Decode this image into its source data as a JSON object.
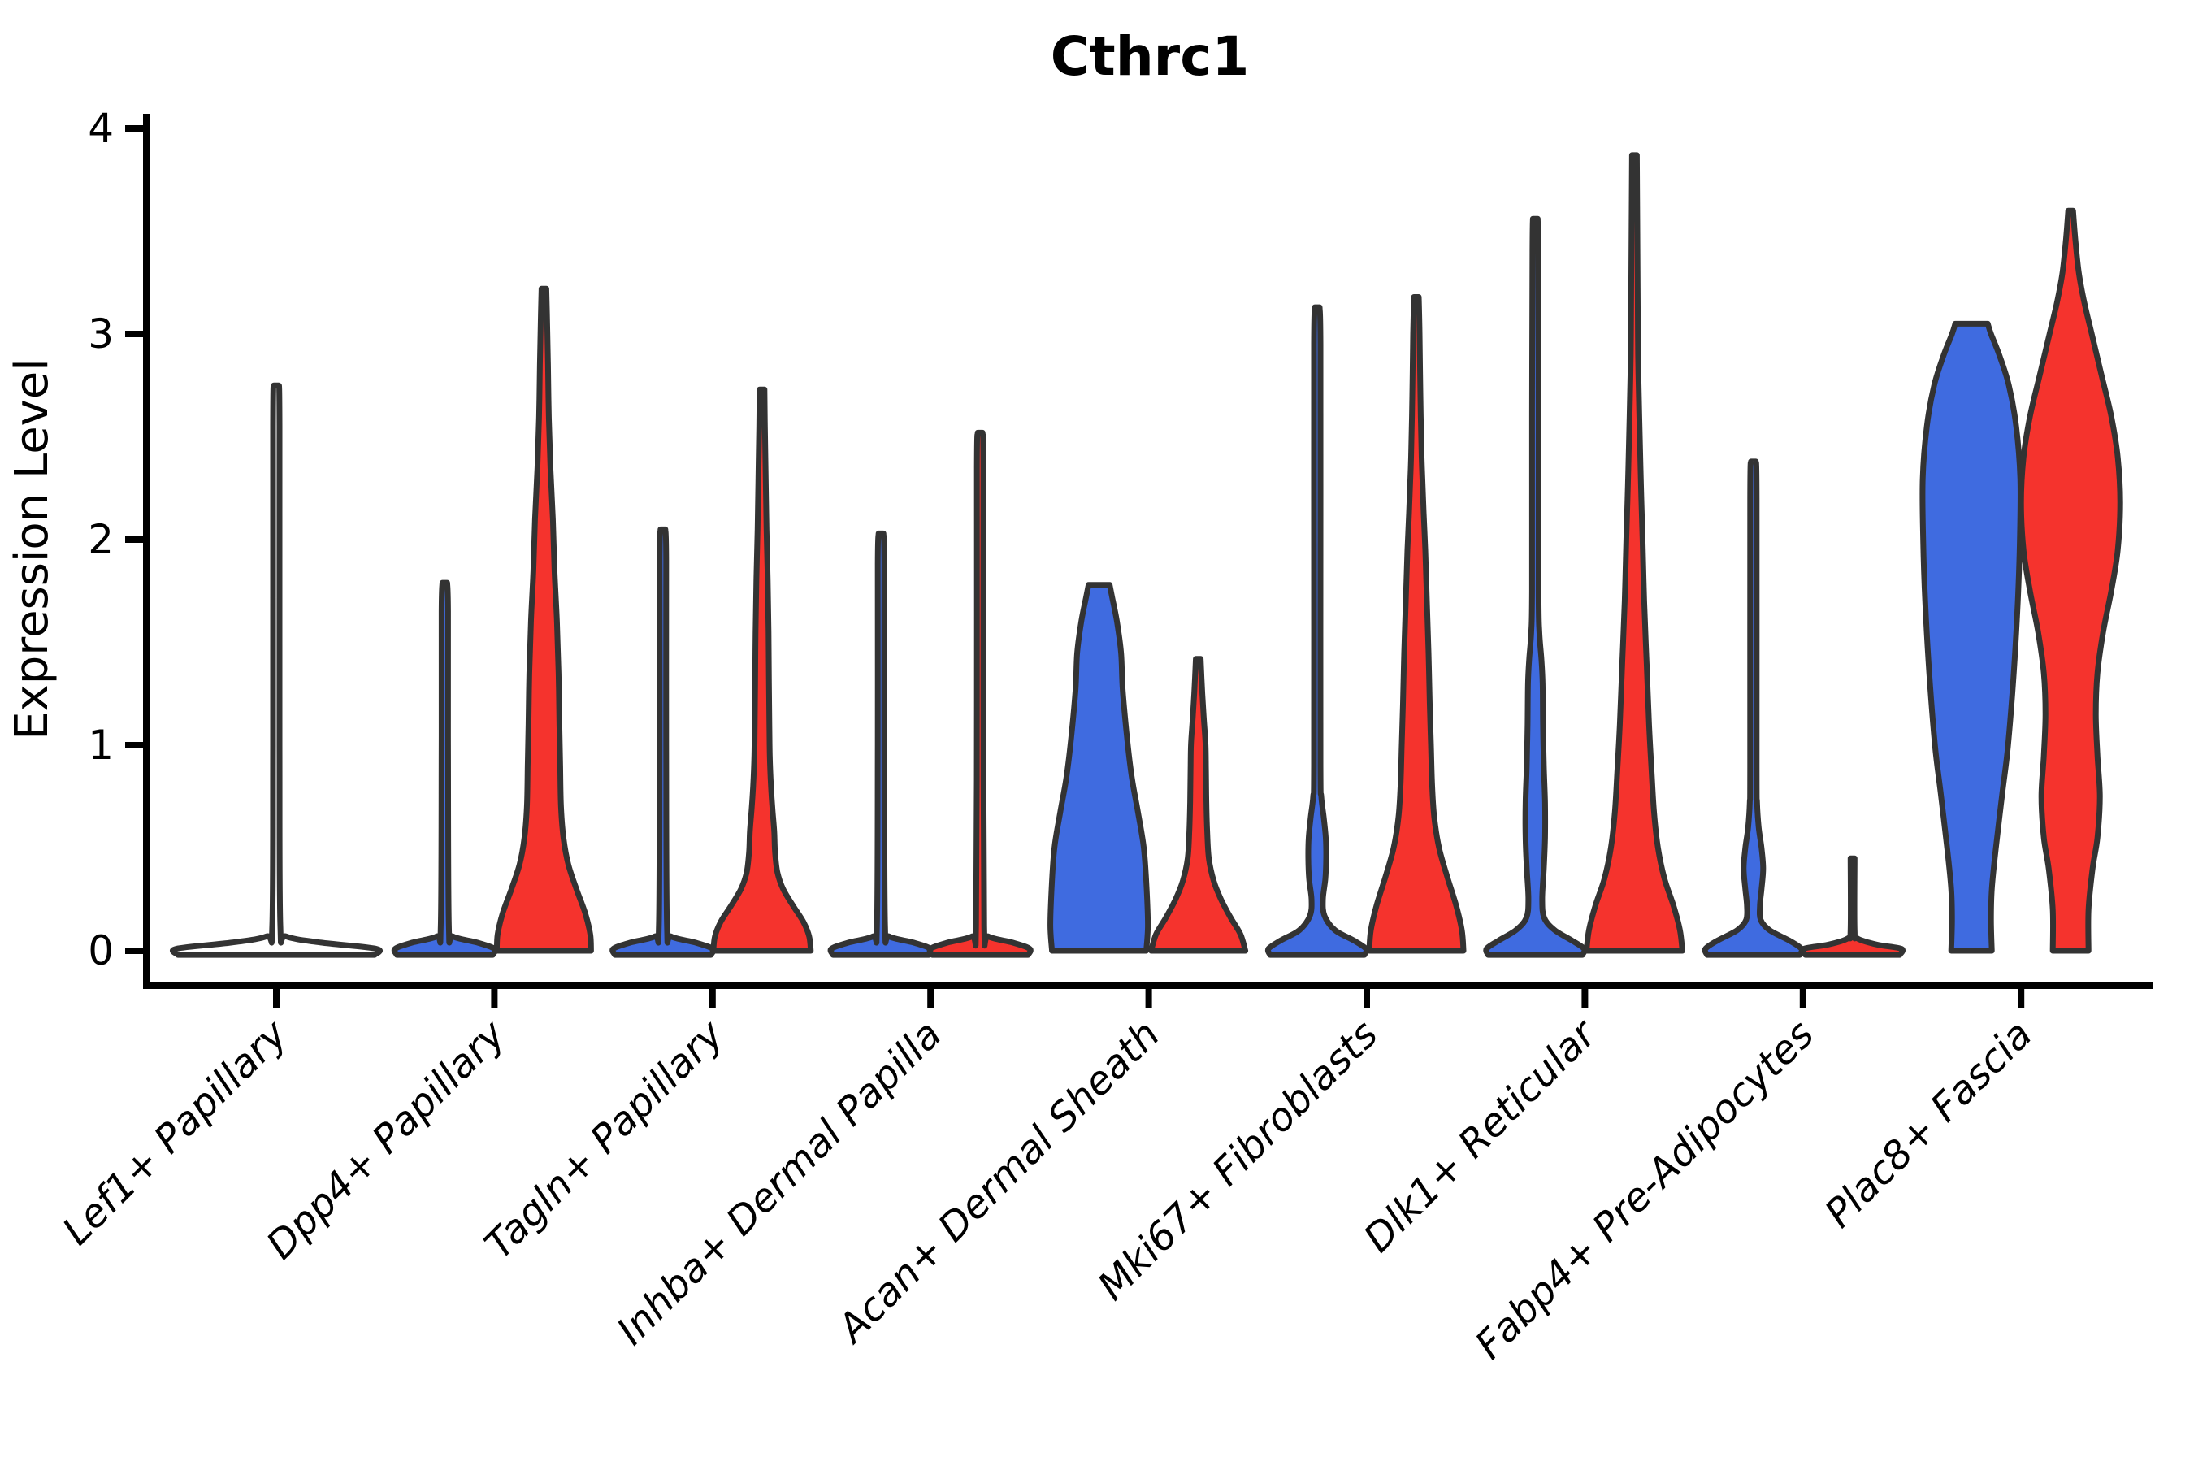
{
  "title": "Cthrc1",
  "colors": {
    "blue": "#3F6BE0",
    "red": "#F5332D",
    "outline": "#333333",
    "axis": "#000000",
    "background": "#ffffff"
  },
  "chart_data": {
    "type": "violin",
    "title": "Cthrc1",
    "ylabel": "Expression Level",
    "xlabel": "",
    "ylim": [
      -0.17,
      4.07
    ],
    "yticks": [
      "0",
      "1",
      "2",
      "3",
      "4"
    ],
    "ytick_values": [
      0,
      1,
      2,
      3,
      4
    ],
    "grid": false,
    "legend": "none",
    "categories": [
      "Lef1+ Papillary",
      "Dpp4+ Papillary",
      "Tagln+ Papillary",
      "Inhba+ Dermal Papilla",
      "Acan+ Dermal Sheath",
      "Mki67+ Fibroblasts",
      "Dlk1+ Reticular",
      "Fabp4+ Pre-Adipocytes",
      "Plac8+ Fascia"
    ],
    "violins": [
      {
        "category_index": 0,
        "group": "single",
        "fill": "none",
        "offset": 0,
        "tip": 2.75,
        "profile": [
          [
            -0.02,
            121
          ],
          [
            0.01,
            123
          ],
          [
            0.04,
            55
          ],
          [
            0.07,
            12
          ],
          [
            0.12,
            5
          ],
          [
            1.0,
            4
          ],
          [
            2.55,
            4
          ],
          [
            2.75,
            3
          ]
        ]
      },
      {
        "category_index": 1,
        "group": "blue",
        "fill": "blue",
        "offset": -61,
        "tip": 1.79,
        "profile": [
          [
            -0.02,
            59
          ],
          [
            0.01,
            61
          ],
          [
            0.04,
            40
          ],
          [
            0.07,
            10
          ],
          [
            0.12,
            5
          ],
          [
            1.0,
            4
          ],
          [
            1.65,
            4
          ],
          [
            1.79,
            3
          ]
        ]
      },
      {
        "category_index": 1,
        "group": "red",
        "fill": "red",
        "offset": 61,
        "tip": 3.22,
        "profile": [
          [
            0,
            58
          ],
          [
            0.08,
            57
          ],
          [
            0.18,
            51
          ],
          [
            0.3,
            40
          ],
          [
            0.42,
            30
          ],
          [
            0.55,
            24
          ],
          [
            0.7,
            21
          ],
          [
            0.9,
            20
          ],
          [
            1.1,
            19
          ],
          [
            1.35,
            18
          ],
          [
            1.6,
            16
          ],
          [
            1.85,
            13
          ],
          [
            2.1,
            11
          ],
          [
            2.35,
            8
          ],
          [
            2.6,
            6
          ],
          [
            2.85,
            5
          ],
          [
            3.05,
            4
          ],
          [
            3.22,
            3
          ]
        ]
      },
      {
        "category_index": 2,
        "group": "blue",
        "fill": "blue",
        "offset": -61,
        "tip": 2.05,
        "profile": [
          [
            -0.02,
            59
          ],
          [
            0.01,
            61
          ],
          [
            0.04,
            40
          ],
          [
            0.07,
            10
          ],
          [
            0.12,
            5
          ],
          [
            1.0,
            4
          ],
          [
            1.9,
            4
          ],
          [
            2.05,
            3
          ]
        ]
      },
      {
        "category_index": 2,
        "group": "red",
        "fill": "red",
        "offset": 61,
        "tip": 2.73,
        "profile": [
          [
            0,
            60
          ],
          [
            0.07,
            58
          ],
          [
            0.14,
            51
          ],
          [
            0.22,
            38
          ],
          [
            0.3,
            26
          ],
          [
            0.38,
            19
          ],
          [
            0.48,
            16
          ],
          [
            0.58,
            15
          ],
          [
            0.68,
            13
          ],
          [
            0.8,
            11
          ],
          [
            0.95,
            9.5
          ],
          [
            1.1,
            9
          ],
          [
            1.3,
            8.5
          ],
          [
            1.55,
            8
          ],
          [
            1.8,
            7
          ],
          [
            2.05,
            5.5
          ],
          [
            2.3,
            4.5
          ],
          [
            2.55,
            3.5
          ],
          [
            2.73,
            3
          ]
        ]
      },
      {
        "category_index": 3,
        "group": "blue",
        "fill": "blue",
        "offset": -61,
        "tip": 2.03,
        "profile": [
          [
            -0.02,
            59
          ],
          [
            0.01,
            61
          ],
          [
            0.04,
            40
          ],
          [
            0.07,
            10
          ],
          [
            0.12,
            5
          ],
          [
            1.0,
            4
          ],
          [
            1.88,
            4
          ],
          [
            2.03,
            3
          ]
        ]
      },
      {
        "category_index": 3,
        "group": "red",
        "fill": "red",
        "offset": 61,
        "tip": 2.52,
        "profile": [
          [
            -0.02,
            59
          ],
          [
            0.01,
            61
          ],
          [
            0.04,
            40
          ],
          [
            0.07,
            10
          ],
          [
            0.12,
            5
          ],
          [
            1.2,
            4
          ],
          [
            2.35,
            4
          ],
          [
            2.52,
            3
          ]
        ]
      },
      {
        "category_index": 4,
        "group": "blue",
        "fill": "blue",
        "offset": -61,
        "tip": 1.78,
        "profile": [
          [
            0,
            58
          ],
          [
            0.12,
            60
          ],
          [
            0.3,
            58.5
          ],
          [
            0.5,
            55
          ],
          [
            0.67,
            48
          ],
          [
            0.85,
            40
          ],
          [
            1.05,
            34
          ],
          [
            1.27,
            29
          ],
          [
            1.45,
            27
          ],
          [
            1.6,
            22
          ],
          [
            1.72,
            16
          ],
          [
            1.78,
            13
          ]
        ]
      },
      {
        "category_index": 4,
        "group": "red",
        "fill": "red",
        "offset": 61,
        "tip": 1.42,
        "profile": [
          [
            0,
            58
          ],
          [
            0.08,
            52
          ],
          [
            0.16,
            40
          ],
          [
            0.25,
            28
          ],
          [
            0.34,
            19
          ],
          [
            0.45,
            13
          ],
          [
            0.58,
            11
          ],
          [
            0.72,
            10
          ],
          [
            0.88,
            9.5
          ],
          [
            1.0,
            9
          ],
          [
            1.12,
            7
          ],
          [
            1.25,
            5
          ],
          [
            1.42,
            3
          ]
        ]
      },
      {
        "category_index": 5,
        "group": "blue",
        "fill": "blue",
        "offset": -61,
        "tip": 3.13,
        "profile": [
          [
            -0.02,
            58
          ],
          [
            0.01,
            60
          ],
          [
            0.05,
            45
          ],
          [
            0.1,
            22
          ],
          [
            0.17,
            9
          ],
          [
            0.25,
            7
          ],
          [
            0.35,
            10
          ],
          [
            0.45,
            11
          ],
          [
            0.55,
            10.5
          ],
          [
            0.65,
            8
          ],
          [
            0.75,
            5
          ],
          [
            0.9,
            4
          ],
          [
            2.0,
            4
          ],
          [
            2.95,
            4
          ],
          [
            3.13,
            3
          ]
        ]
      },
      {
        "category_index": 5,
        "group": "red",
        "fill": "red",
        "offset": 61,
        "tip": 3.18,
        "profile": [
          [
            0,
            58
          ],
          [
            0.1,
            56
          ],
          [
            0.22,
            49
          ],
          [
            0.36,
            38
          ],
          [
            0.5,
            28
          ],
          [
            0.65,
            22
          ],
          [
            0.8,
            19.5
          ],
          [
            1.0,
            18
          ],
          [
            1.2,
            16.5
          ],
          [
            1.45,
            15
          ],
          [
            1.7,
            13
          ],
          [
            1.95,
            11
          ],
          [
            2.13,
            9
          ],
          [
            2.4,
            6.5
          ],
          [
            2.7,
            5
          ],
          [
            3.0,
            4
          ],
          [
            3.18,
            3
          ]
        ]
      },
      {
        "category_index": 6,
        "group": "blue",
        "fill": "blue",
        "offset": -61,
        "tip": 3.56,
        "profile": [
          [
            -0.02,
            58
          ],
          [
            0.01,
            60
          ],
          [
            0.05,
            45
          ],
          [
            0.1,
            24
          ],
          [
            0.16,
            11
          ],
          [
            0.25,
            8.5
          ],
          [
            0.4,
            10.5
          ],
          [
            0.55,
            12
          ],
          [
            0.72,
            12
          ],
          [
            0.9,
            10.5
          ],
          [
            1.1,
            9.5
          ],
          [
            1.3,
            9
          ],
          [
            1.42,
            7.5
          ],
          [
            1.55,
            5
          ],
          [
            1.75,
            4
          ],
          [
            2.6,
            4
          ],
          [
            3.4,
            3.5
          ],
          [
            3.56,
            3
          ]
        ]
      },
      {
        "category_index": 6,
        "group": "red",
        "fill": "red",
        "offset": 61,
        "tip": 3.87,
        "profile": [
          [
            0,
            59
          ],
          [
            0.1,
            56
          ],
          [
            0.22,
            48
          ],
          [
            0.35,
            37
          ],
          [
            0.5,
            29
          ],
          [
            0.68,
            24
          ],
          [
            0.88,
            21
          ],
          [
            1.1,
            18
          ],
          [
            1.4,
            15
          ],
          [
            1.7,
            12
          ],
          [
            2.0,
            10
          ],
          [
            2.2,
            8.5
          ],
          [
            2.35,
            7.5
          ],
          [
            2.6,
            6
          ],
          [
            2.9,
            4.5
          ],
          [
            3.2,
            4
          ],
          [
            3.55,
            3.5
          ],
          [
            3.87,
            3
          ]
        ]
      },
      {
        "category_index": 7,
        "group": "blue",
        "fill": "blue",
        "offset": -61,
        "tip": 2.38,
        "profile": [
          [
            -0.02,
            57
          ],
          [
            0.01,
            59
          ],
          [
            0.05,
            44
          ],
          [
            0.1,
            20
          ],
          [
            0.15,
            9
          ],
          [
            0.22,
            8
          ],
          [
            0.3,
            10
          ],
          [
            0.4,
            12
          ],
          [
            0.5,
            10
          ],
          [
            0.6,
            6.5
          ],
          [
            0.72,
            4.5
          ],
          [
            0.9,
            4
          ],
          [
            2.2,
            4
          ],
          [
            2.38,
            3
          ]
        ]
      },
      {
        "category_index": 7,
        "group": "red",
        "fill": "red",
        "offset": 61,
        "tip": 0.45,
        "profile": [
          [
            -0.02,
            58
          ],
          [
            0.01,
            60
          ],
          [
            0.03,
            30
          ],
          [
            0.06,
            6
          ],
          [
            0.1,
            2.5
          ],
          [
            0.45,
            2.5
          ]
        ],
        "dots": [
          0.21,
          0.33,
          0.42
        ]
      },
      {
        "category_index": 8,
        "group": "blue",
        "fill": "blue",
        "offset": -61,
        "tip": 3.05,
        "profile": [
          [
            0,
            25
          ],
          [
            0.15,
            24
          ],
          [
            0.3,
            25
          ],
          [
            0.5,
            30
          ],
          [
            0.77,
            38
          ],
          [
            1.0,
            45
          ],
          [
            1.35,
            52
          ],
          [
            1.7,
            57
          ],
          [
            2.0,
            59.5
          ],
          [
            2.3,
            60
          ],
          [
            2.55,
            55
          ],
          [
            2.75,
            46
          ],
          [
            2.9,
            34
          ],
          [
            3.0,
            24
          ],
          [
            3.05,
            20
          ]
        ]
      },
      {
        "category_index": 8,
        "group": "red",
        "fill": "red",
        "offset": 61,
        "tip": 3.6,
        "profile": [
          [
            0,
            22
          ],
          [
            0.2,
            22
          ],
          [
            0.4,
            27
          ],
          [
            0.55,
            33
          ],
          [
            0.75,
            36
          ],
          [
            0.95,
            33
          ],
          [
            1.15,
            31
          ],
          [
            1.35,
            33
          ],
          [
            1.55,
            40
          ],
          [
            1.75,
            50
          ],
          [
            1.95,
            58
          ],
          [
            2.18,
            61
          ],
          [
            2.4,
            58
          ],
          [
            2.6,
            50
          ],
          [
            2.8,
            38
          ],
          [
            3.0,
            26
          ],
          [
            3.15,
            17
          ],
          [
            3.3,
            10
          ],
          [
            3.45,
            6
          ],
          [
            3.6,
            3
          ]
        ]
      }
    ]
  }
}
